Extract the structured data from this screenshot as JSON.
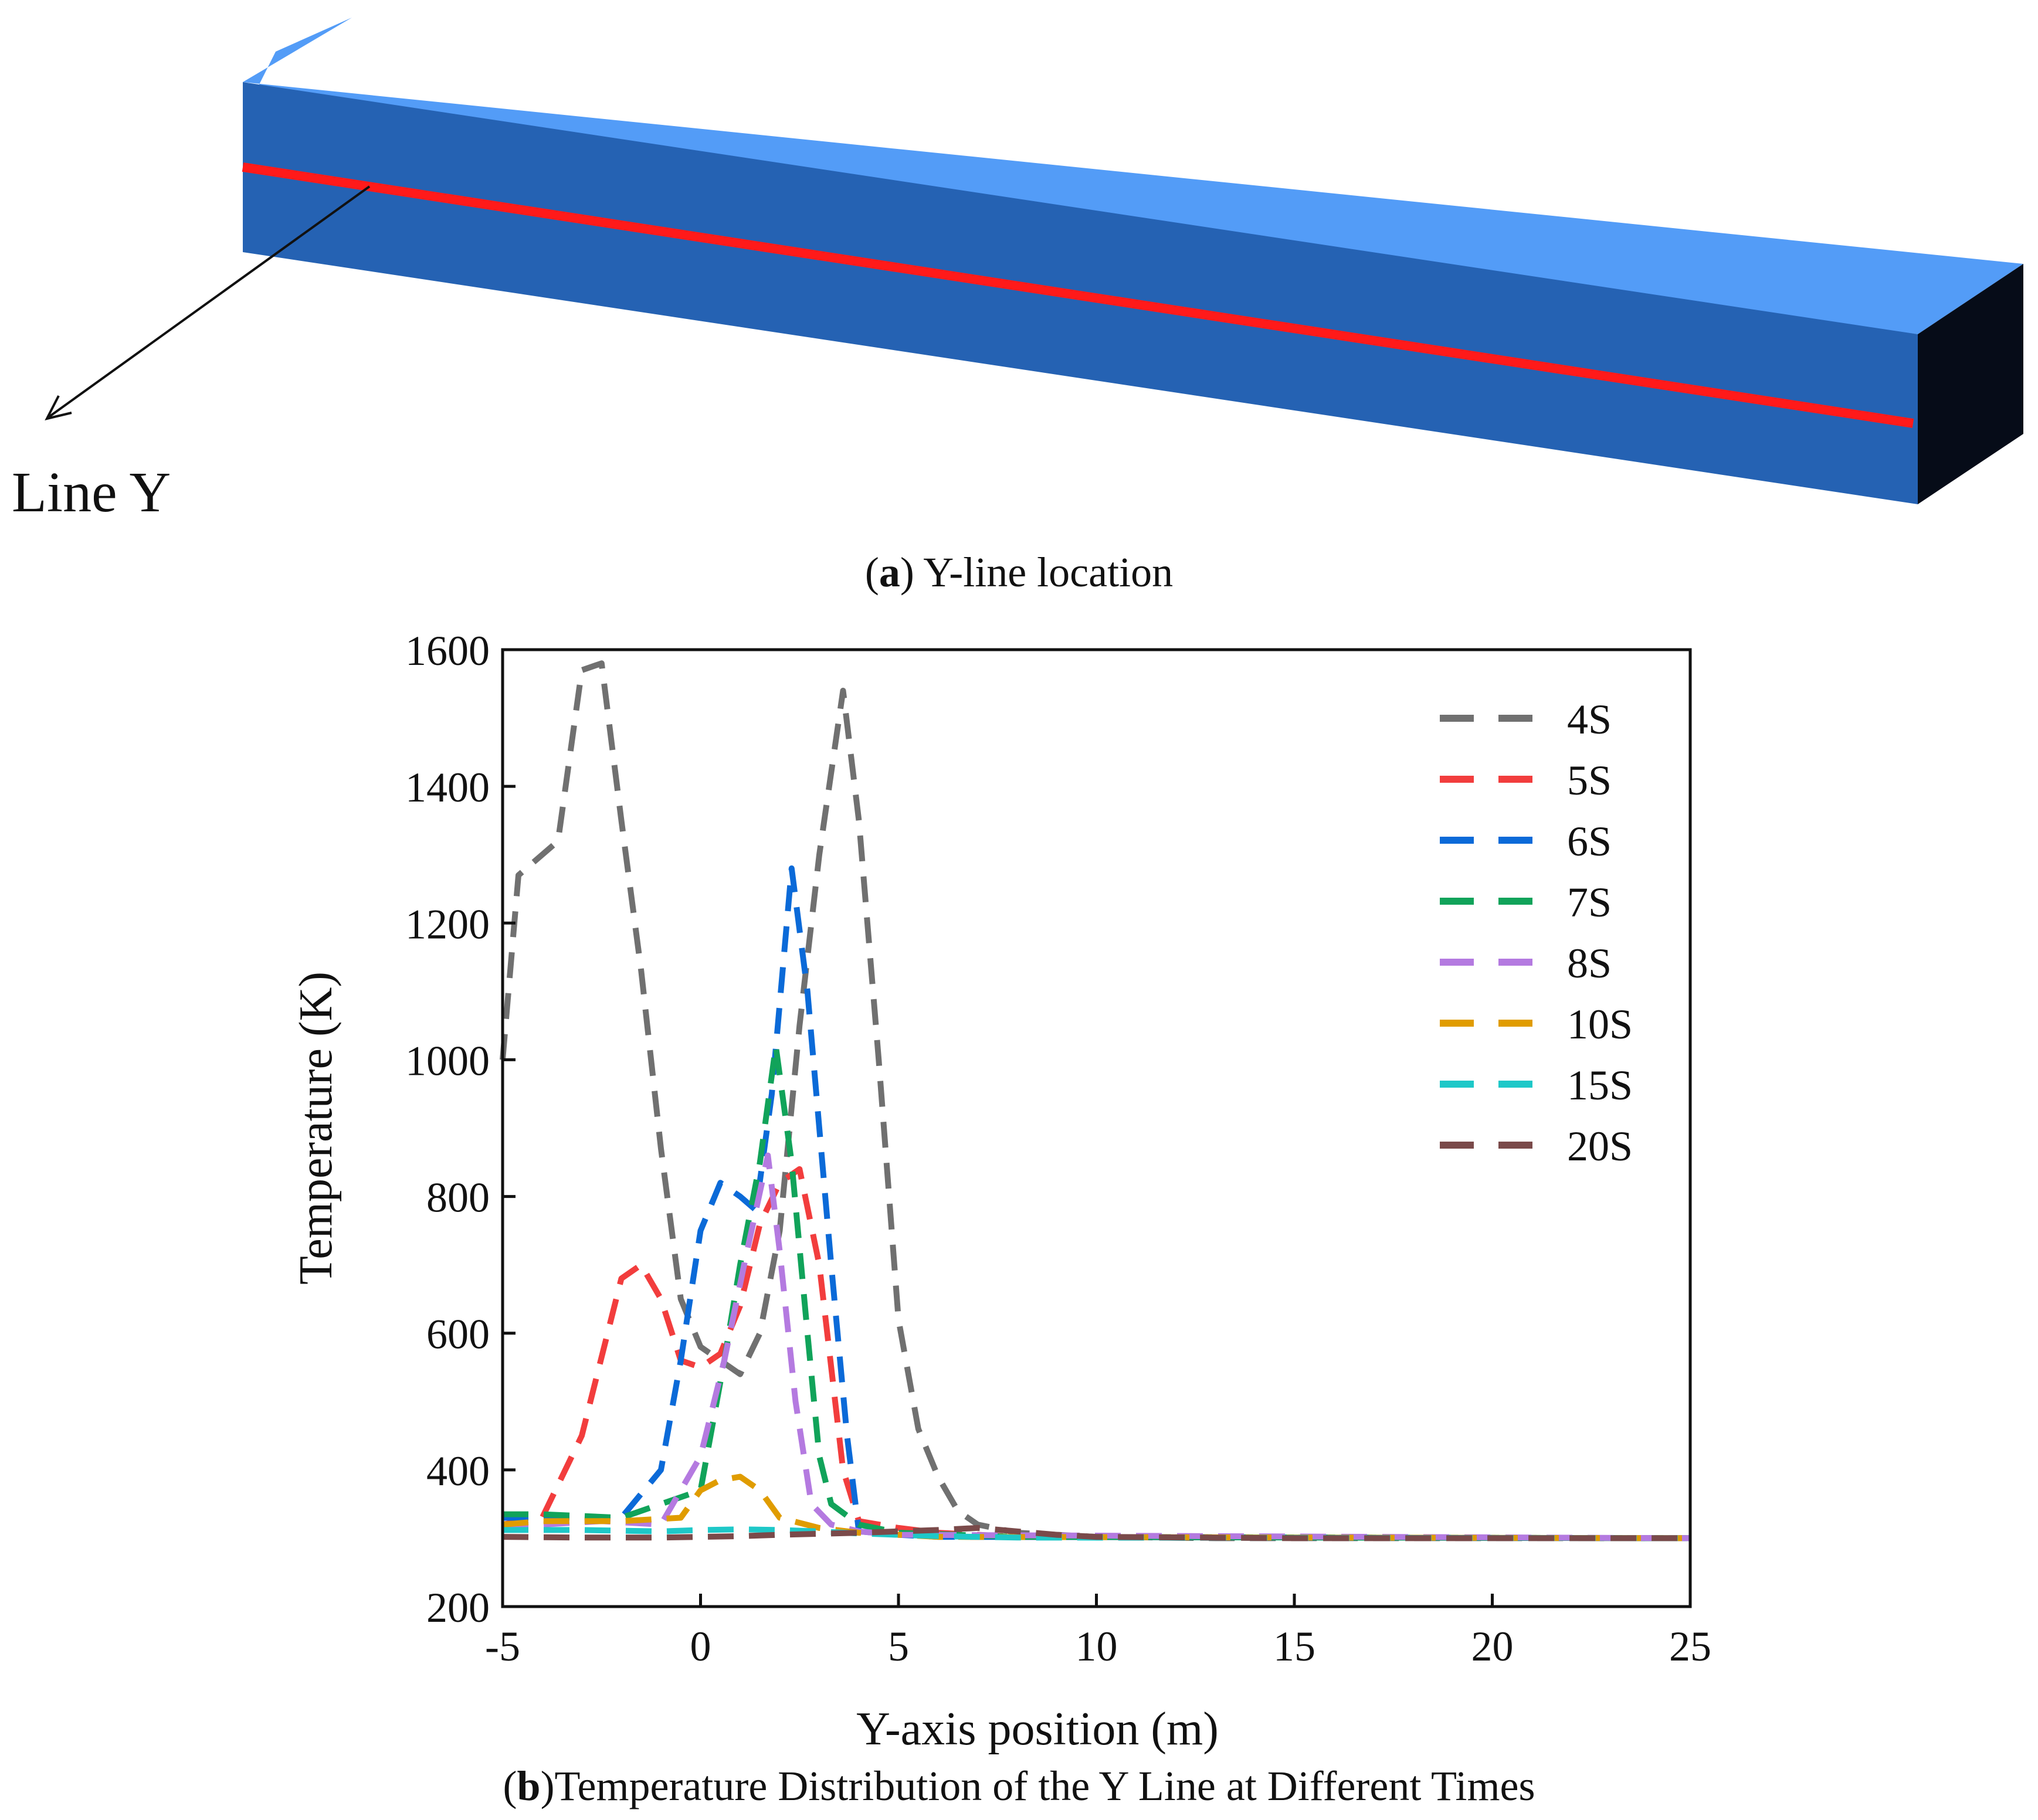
{
  "panel_a": {
    "line_label": "Line Y",
    "caption_letter": "a",
    "caption_text": ") Y-line location",
    "colors": {
      "top_face": "#539cf7",
      "front_face": "#2562b3",
      "end_face": "#060c18",
      "line": "#ff1a1a"
    }
  },
  "panel_b": {
    "caption_letter": "b",
    "caption_text": ")Temperature Distribution of the Y Line at Different Times"
  },
  "chart_data": {
    "type": "line",
    "title": "",
    "xlabel": "Y-axis position (m)",
    "ylabel": "Temperature (K)",
    "xlim": [
      -5,
      25
    ],
    "ylim": [
      200,
      1600
    ],
    "xticks": [
      -5,
      0,
      5,
      10,
      15,
      20,
      25
    ],
    "yticks": [
      200,
      400,
      600,
      800,
      1000,
      1200,
      1400,
      1600
    ],
    "grid": false,
    "legend_position": "top-right",
    "line_style": "dashed",
    "series": [
      {
        "name": "4S",
        "color": "#707070",
        "points": [
          [
            -5,
            1000
          ],
          [
            -4.6,
            1270
          ],
          [
            -3.6,
            1320
          ],
          [
            -3,
            1570
          ],
          [
            -2.5,
            1580
          ],
          [
            -2,
            1350
          ],
          [
            -1.5,
            1130
          ],
          [
            -1,
            870
          ],
          [
            -0.5,
            650
          ],
          [
            0,
            580
          ],
          [
            0.5,
            560
          ],
          [
            1,
            540
          ],
          [
            1.5,
            600
          ],
          [
            2,
            750
          ],
          [
            2.5,
            1050
          ],
          [
            3,
            1300
          ],
          [
            3.6,
            1540
          ],
          [
            4,
            1350
          ],
          [
            4.5,
            1000
          ],
          [
            5,
            620
          ],
          [
            5.5,
            460
          ],
          [
            6,
            390
          ],
          [
            6.5,
            340
          ],
          [
            7,
            320
          ],
          [
            8,
            308
          ],
          [
            10,
            302
          ],
          [
            13,
            300
          ],
          [
            25,
            300
          ]
        ]
      },
      {
        "name": "5S",
        "color": "#f23d3d",
        "points": [
          [
            -5,
            320
          ],
          [
            -4,
            330
          ],
          [
            -3,
            450
          ],
          [
            -2,
            680
          ],
          [
            -1.5,
            700
          ],
          [
            -1,
            650
          ],
          [
            -0.5,
            560
          ],
          [
            0,
            550
          ],
          [
            0.5,
            570
          ],
          [
            1,
            640
          ],
          [
            1.5,
            760
          ],
          [
            2,
            820
          ],
          [
            2.5,
            840
          ],
          [
            3,
            700
          ],
          [
            3.3,
            550
          ],
          [
            3.6,
            400
          ],
          [
            4,
            325
          ],
          [
            4.5,
            320
          ],
          [
            5,
            315
          ],
          [
            6,
            308
          ],
          [
            8,
            302
          ],
          [
            25,
            300
          ]
        ]
      },
      {
        "name": "6S",
        "color": "#0b6ad8",
        "points": [
          [
            -5,
            330
          ],
          [
            -4,
            330
          ],
          [
            -2,
            330
          ],
          [
            -1,
            400
          ],
          [
            -0.5,
            560
          ],
          [
            0,
            750
          ],
          [
            0.5,
            820
          ],
          [
            1,
            800
          ],
          [
            1.4,
            780
          ],
          [
            1.8,
            950
          ],
          [
            2.3,
            1280
          ],
          [
            2.7,
            1100
          ],
          [
            3,
            900
          ],
          [
            3.3,
            700
          ],
          [
            3.7,
            450
          ],
          [
            4,
            310
          ],
          [
            5,
            305
          ],
          [
            6,
            302
          ],
          [
            25,
            300
          ]
        ]
      },
      {
        "name": "7S",
        "color": "#11a35a",
        "points": [
          [
            -5,
            335
          ],
          [
            -4,
            335
          ],
          [
            -2,
            330
          ],
          [
            0,
            370
          ],
          [
            0.6,
            560
          ],
          [
            1,
            700
          ],
          [
            1.5,
            850
          ],
          [
            1.9,
            1020
          ],
          [
            2.3,
            850
          ],
          [
            2.7,
            600
          ],
          [
            3,
            420
          ],
          [
            3.3,
            350
          ],
          [
            4,
            320
          ],
          [
            5,
            308
          ],
          [
            8,
            302
          ],
          [
            25,
            300
          ]
        ]
      },
      {
        "name": "8S",
        "color": "#b47ae0",
        "points": [
          [
            -5,
            320
          ],
          [
            -4,
            320
          ],
          [
            -2.5,
            325
          ],
          [
            -1,
            320
          ],
          [
            0,
            420
          ],
          [
            0.6,
            560
          ],
          [
            1.1,
            700
          ],
          [
            1.7,
            860
          ],
          [
            2,
            720
          ],
          [
            2.4,
            500
          ],
          [
            2.8,
            350
          ],
          [
            3.3,
            320
          ],
          [
            4,
            310
          ],
          [
            5,
            305
          ],
          [
            25,
            300
          ]
        ]
      },
      {
        "name": "10S",
        "color": "#e09c00",
        "points": [
          [
            -5,
            320
          ],
          [
            -4,
            325
          ],
          [
            -2,
            325
          ],
          [
            -0.5,
            330
          ],
          [
            0,
            370
          ],
          [
            0.5,
            385
          ],
          [
            1,
            390
          ],
          [
            1.5,
            370
          ],
          [
            2,
            330
          ],
          [
            3,
            315
          ],
          [
            4,
            308
          ],
          [
            6,
            302
          ],
          [
            25,
            300
          ]
        ]
      },
      {
        "name": "15S",
        "color": "#1ec8c8",
        "points": [
          [
            -5,
            312
          ],
          [
            -3,
            312
          ],
          [
            -1,
            310
          ],
          [
            0,
            312
          ],
          [
            1,
            313
          ],
          [
            2,
            312
          ],
          [
            3,
            310
          ],
          [
            4,
            307
          ],
          [
            6,
            303
          ],
          [
            8,
            301
          ],
          [
            25,
            300
          ]
        ]
      },
      {
        "name": "20S",
        "color": "#7a4a4a",
        "points": [
          [
            -5,
            302
          ],
          [
            -3,
            301
          ],
          [
            -1,
            301
          ],
          [
            0,
            302
          ],
          [
            1,
            303
          ],
          [
            2,
            305
          ],
          [
            4,
            308
          ],
          [
            6,
            312
          ],
          [
            7,
            315
          ],
          [
            8,
            310
          ],
          [
            9,
            305
          ],
          [
            10,
            302
          ],
          [
            15,
            300
          ],
          [
            25,
            300
          ]
        ]
      }
    ]
  }
}
